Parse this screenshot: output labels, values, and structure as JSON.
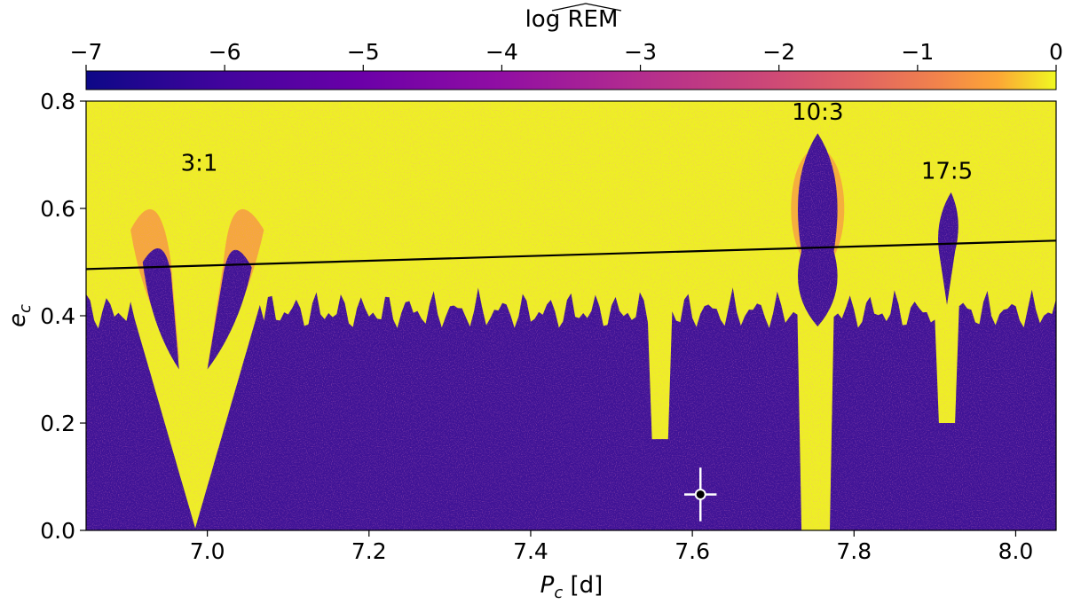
{
  "chart_data": {
    "type": "heatmap",
    "title": "",
    "xlabel": {
      "main": "P",
      "sub": "c",
      "unit": " [d]"
    },
    "ylabel": {
      "main": "e",
      "sub": "c"
    },
    "xlim": [
      6.85,
      8.05
    ],
    "ylim": [
      0.0,
      0.8
    ],
    "xticks": [
      7.0,
      7.2,
      7.4,
      7.6,
      7.8,
      8.0
    ],
    "xtick_labels": [
      "7.0",
      "7.2",
      "7.4",
      "7.6",
      "7.8",
      "8.0"
    ],
    "yticks": [
      0.0,
      0.2,
      0.4,
      0.6,
      0.8
    ],
    "ytick_labels": [
      "0.0",
      "0.2",
      "0.4",
      "0.6",
      "0.8"
    ],
    "colorbar": {
      "label": "log REM",
      "range": [
        -7,
        0
      ],
      "ticks": [
        -7,
        -6,
        -5,
        -4,
        -3,
        -2,
        -1,
        0
      ],
      "tick_labels": [
        "−7",
        "−6",
        "−5",
        "−4",
        "−3",
        "−2",
        "−1",
        "0"
      ],
      "colormap": "plasma"
    },
    "annotations": [
      {
        "text": "3:1",
        "x": 6.99,
        "y": 0.67
      },
      {
        "text": "10:3",
        "x": 7.755,
        "y": 0.765
      },
      {
        "text": "17:5",
        "x": 7.915,
        "y": 0.655
      }
    ],
    "line": {
      "points": [
        [
          6.85,
          0.487
        ],
        [
          8.05,
          0.54
        ]
      ],
      "color": "#000000"
    },
    "marker": {
      "x": 7.61,
      "y": 0.067,
      "xerr": 0.02,
      "yerr": 0.05
    },
    "colors": {
      "stable": "#3f1396",
      "chaotic": "#eef023",
      "boundary": "#f5a83a"
    }
  }
}
